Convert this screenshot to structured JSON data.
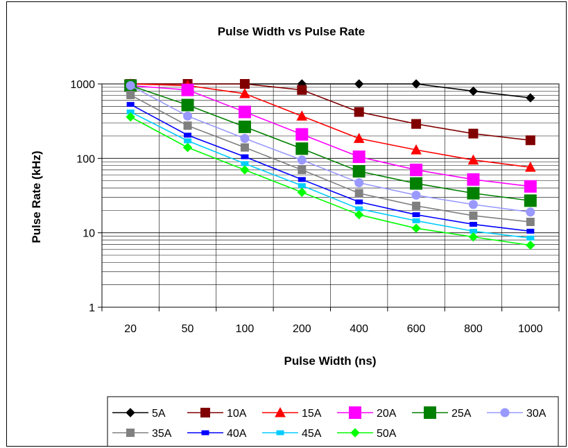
{
  "chart_data": {
    "type": "line",
    "title": "Pulse Width vs Pulse Rate",
    "xlabel": "Pulse Width (ns)",
    "ylabel": "Pulse Rate (kHz)",
    "categories": [
      "20",
      "50",
      "100",
      "200",
      "400",
      "600",
      "800",
      "1000"
    ],
    "y_scale": "log",
    "ylim": [
      1,
      1000
    ],
    "y_ticks": [
      "1",
      "10",
      "100",
      "1000"
    ],
    "grid": true,
    "legend_position": "bottom",
    "series": [
      {
        "name": "5A",
        "color": "#000000",
        "marker": "diamond",
        "values": [
          1000,
          1000,
          1000,
          1000,
          1000,
          1000,
          800,
          650
        ]
      },
      {
        "name": "10A",
        "color": "#800000",
        "marker": "square",
        "values": [
          1000,
          1000,
          1000,
          830,
          420,
          290,
          215,
          175
        ]
      },
      {
        "name": "15A",
        "color": "#ff0000",
        "marker": "triangle",
        "values": [
          1000,
          950,
          740,
          370,
          185,
          130,
          95,
          76
        ]
      },
      {
        "name": "20A",
        "color": "#ff00ff",
        "marker": "square",
        "values": [
          950,
          830,
          420,
          210,
          105,
          70,
          52,
          42
        ]
      },
      {
        "name": "25A",
        "color": "#008000",
        "marker": "square",
        "values": [
          950,
          520,
          265,
          135,
          67,
          46,
          34,
          27
        ]
      },
      {
        "name": "30A",
        "color": "#9999ff",
        "marker": "circle",
        "values": [
          950,
          370,
          185,
          95,
          47,
          32,
          24,
          19
        ]
      },
      {
        "name": "35A",
        "color": "#808080",
        "marker": "square",
        "values": [
          710,
          275,
          140,
          70,
          34,
          23,
          17,
          14
        ]
      },
      {
        "name": "40A",
        "color": "#0000ff",
        "marker": "dash",
        "values": [
          530,
          205,
          105,
          52,
          26,
          17.5,
          13,
          10.5
        ]
      },
      {
        "name": "45A",
        "color": "#00ccff",
        "marker": "dash",
        "values": [
          420,
          172,
          85,
          43,
          21,
          14.5,
          10.5,
          8.5
        ]
      },
      {
        "name": "50A",
        "color": "#00ff00",
        "marker": "diamond",
        "values": [
          360,
          140,
          70,
          35,
          17.5,
          11.5,
          8.8,
          6.8
        ]
      }
    ]
  }
}
